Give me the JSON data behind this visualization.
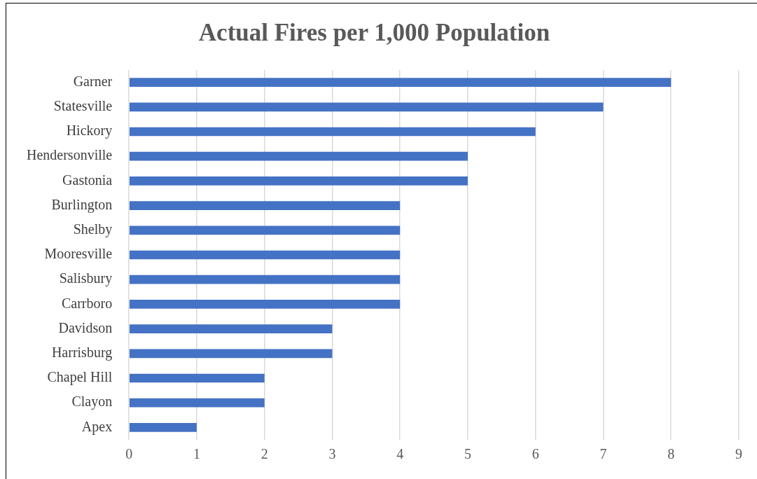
{
  "chart_data": {
    "type": "bar",
    "orientation": "horizontal",
    "title": "Actual Fires per 1,000 Population",
    "categories": [
      "Garner",
      "Statesville",
      "Hickory",
      "Hendersonville",
      "Gastonia",
      "Burlington",
      "Shelby",
      "Mooresville",
      "Salisbury",
      "Carrboro",
      "Davidson",
      "Harrisburg",
      "Chapel Hill",
      "Clayon",
      "Apex"
    ],
    "values": [
      8,
      7,
      6,
      5,
      5,
      4,
      4,
      4,
      4,
      4,
      3,
      3,
      2,
      2,
      1
    ],
    "color": "#4472c4",
    "xlim": [
      0,
      9
    ],
    "xticks": [
      0,
      1,
      2,
      3,
      4,
      5,
      6,
      7,
      8,
      9
    ],
    "grid": "x",
    "legend": false
  }
}
